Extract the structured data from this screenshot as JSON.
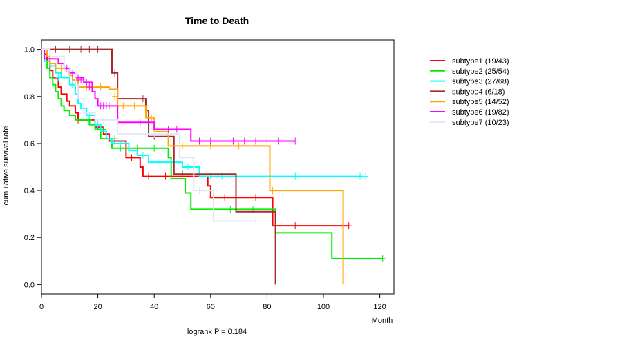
{
  "chart_data": {
    "type": "line",
    "title": "Time to Death",
    "xlabel": "Month",
    "ylabel": "cumulative survival rate",
    "annotation": "logrank P = 0.184",
    "xlim": [
      0,
      125
    ],
    "ylim": [
      -0.04,
      1.04
    ],
    "xticks": [
      0,
      20,
      40,
      60,
      80,
      100,
      120
    ],
    "yticks": [
      0.0,
      0.2,
      0.4,
      0.6,
      0.8,
      1.0
    ],
    "ytick_labels": [
      "0.0",
      "0.2",
      "0.4",
      "0.6",
      "0.8",
      "1.0"
    ],
    "legend_position": "right",
    "series": [
      {
        "name": "subtype1 (19/43)",
        "color": "#ff0000",
        "steps": [
          [
            0,
            1.0
          ],
          [
            1,
            0.98
          ],
          [
            2,
            0.95
          ],
          [
            3,
            0.91
          ],
          [
            4,
            0.88
          ],
          [
            6,
            0.84
          ],
          [
            7,
            0.81
          ],
          [
            9,
            0.78
          ],
          [
            10,
            0.76
          ],
          [
            12,
            0.73
          ],
          [
            13,
            0.7
          ],
          [
            19,
            0.67
          ],
          [
            22,
            0.64
          ],
          [
            24,
            0.61
          ],
          [
            30,
            0.54
          ],
          [
            35,
            0.5
          ],
          [
            36,
            0.46
          ],
          [
            59,
            0.42
          ],
          [
            60,
            0.37
          ],
          [
            82,
            0.25
          ],
          [
            109,
            0.25
          ]
        ],
        "censors": [
          [
            13,
            0.7
          ],
          [
            20,
            0.67
          ],
          [
            23,
            0.64
          ],
          [
            26,
            0.61
          ],
          [
            32,
            0.54
          ],
          [
            38,
            0.46
          ],
          [
            44,
            0.46
          ],
          [
            54,
            0.46
          ],
          [
            65,
            0.37
          ],
          [
            76,
            0.37
          ],
          [
            90,
            0.25
          ],
          [
            109,
            0.25
          ]
        ]
      },
      {
        "name": "subtype2 (25/54)",
        "color": "#00ee00",
        "steps": [
          [
            0,
            1.0
          ],
          [
            1,
            0.95
          ],
          [
            2,
            0.92
          ],
          [
            3,
            0.88
          ],
          [
            4,
            0.85
          ],
          [
            5,
            0.82
          ],
          [
            6,
            0.79
          ],
          [
            7,
            0.76
          ],
          [
            8,
            0.74
          ],
          [
            10,
            0.72
          ],
          [
            12,
            0.7
          ],
          [
            17,
            0.68
          ],
          [
            19,
            0.66
          ],
          [
            21,
            0.62
          ],
          [
            25,
            0.58
          ],
          [
            45,
            0.54
          ],
          [
            46,
            0.45
          ],
          [
            51,
            0.39
          ],
          [
            53,
            0.32
          ],
          [
            83,
            0.22
          ],
          [
            103,
            0.11
          ],
          [
            121,
            0.11
          ]
        ],
        "censors": [
          [
            17,
            0.7
          ],
          [
            19,
            0.68
          ],
          [
            22,
            0.66
          ],
          [
            26,
            0.62
          ],
          [
            28,
            0.58
          ],
          [
            30,
            0.58
          ],
          [
            34,
            0.58
          ],
          [
            40,
            0.58
          ],
          [
            67,
            0.32
          ],
          [
            75,
            0.32
          ],
          [
            80,
            0.32
          ],
          [
            121,
            0.11
          ]
        ]
      },
      {
        "name": "subtype3 (27/68)",
        "color": "#00ffff",
        "steps": [
          [
            0,
            1.0
          ],
          [
            1,
            0.95
          ],
          [
            3,
            0.93
          ],
          [
            5,
            0.9
          ],
          [
            7,
            0.88
          ],
          [
            10,
            0.85
          ],
          [
            12,
            0.81
          ],
          [
            13,
            0.77
          ],
          [
            14,
            0.75
          ],
          [
            16,
            0.72
          ],
          [
            19,
            0.68
          ],
          [
            21,
            0.65
          ],
          [
            23,
            0.62
          ],
          [
            25,
            0.6
          ],
          [
            31,
            0.57
          ],
          [
            34,
            0.55
          ],
          [
            38,
            0.52
          ],
          [
            50,
            0.5
          ],
          [
            56,
            0.46
          ],
          [
            114,
            0.46
          ]
        ],
        "censors": [
          [
            6,
            0.88
          ],
          [
            8,
            0.88
          ],
          [
            11,
            0.85
          ],
          [
            15,
            0.75
          ],
          [
            17,
            0.72
          ],
          [
            20,
            0.68
          ],
          [
            28,
            0.6
          ],
          [
            36,
            0.55
          ],
          [
            42,
            0.52
          ],
          [
            46,
            0.52
          ],
          [
            52,
            0.5
          ],
          [
            60,
            0.46
          ],
          [
            64,
            0.46
          ],
          [
            80,
            0.46
          ],
          [
            90,
            0.46
          ],
          [
            113,
            0.46
          ],
          [
            115,
            0.46
          ]
        ]
      },
      {
        "name": "subtype4 (6/18)",
        "color": "#a52a2a",
        "steps": [
          [
            0,
            1.0
          ],
          [
            25,
            0.9
          ],
          [
            27,
            0.79
          ],
          [
            37,
            0.74
          ],
          [
            38,
            0.63
          ],
          [
            47,
            0.47
          ],
          [
            69,
            0.31
          ],
          [
            83,
            0.0
          ]
        ],
        "censors": [
          [
            5,
            1.0
          ],
          [
            10,
            1.0
          ],
          [
            14,
            1.0
          ],
          [
            17,
            1.0
          ],
          [
            20,
            1.0
          ],
          [
            26,
            0.9
          ],
          [
            36,
            0.79
          ],
          [
            40,
            0.63
          ],
          [
            50,
            0.47
          ]
        ]
      },
      {
        "name": "subtype5 (14/52)",
        "color": "#ffa500",
        "steps": [
          [
            0,
            1.0
          ],
          [
            2,
            0.97
          ],
          [
            3,
            0.94
          ],
          [
            5,
            0.92
          ],
          [
            10,
            0.89
          ],
          [
            11,
            0.87
          ],
          [
            13,
            0.84
          ],
          [
            20,
            0.84
          ],
          [
            24,
            0.83
          ],
          [
            27,
            0.76
          ],
          [
            37,
            0.71
          ],
          [
            40,
            0.65
          ],
          [
            45,
            0.59
          ],
          [
            81,
            0.4
          ],
          [
            107,
            0.0
          ]
        ],
        "censors": [
          [
            7,
            0.92
          ],
          [
            12,
            0.87
          ],
          [
            16,
            0.84
          ],
          [
            21,
            0.84
          ],
          [
            26,
            0.8
          ],
          [
            29,
            0.76
          ],
          [
            31,
            0.76
          ],
          [
            33,
            0.76
          ],
          [
            39,
            0.71
          ],
          [
            50,
            0.59
          ],
          [
            60,
            0.59
          ],
          [
            70,
            0.59
          ],
          [
            82,
            0.4
          ]
        ]
      },
      {
        "name": "subtype6 (19/82)",
        "color": "#ff00ff",
        "steps": [
          [
            0,
            1.0
          ],
          [
            1,
            0.96
          ],
          [
            6,
            0.94
          ],
          [
            8,
            0.92
          ],
          [
            10,
            0.9
          ],
          [
            12,
            0.88
          ],
          [
            15,
            0.86
          ],
          [
            18,
            0.82
          ],
          [
            19,
            0.79
          ],
          [
            20,
            0.76
          ],
          [
            27,
            0.69
          ],
          [
            40,
            0.66
          ],
          [
            53,
            0.61
          ],
          [
            90,
            0.61
          ]
        ],
        "censors": [
          [
            9,
            0.92
          ],
          [
            11,
            0.9
          ],
          [
            13,
            0.88
          ],
          [
            14,
            0.87
          ],
          [
            16,
            0.86
          ],
          [
            17,
            0.84
          ],
          [
            21,
            0.76
          ],
          [
            22,
            0.76
          ],
          [
            23,
            0.76
          ],
          [
            24,
            0.76
          ],
          [
            35,
            0.69
          ],
          [
            45,
            0.66
          ],
          [
            48,
            0.66
          ],
          [
            56,
            0.61
          ],
          [
            60,
            0.61
          ],
          [
            68,
            0.61
          ],
          [
            72,
            0.61
          ],
          [
            76,
            0.61
          ],
          [
            80,
            0.61
          ],
          [
            84,
            0.61
          ],
          [
            90,
            0.61
          ]
        ]
      },
      {
        "name": "subtype7 (10/23)",
        "color": "#e0e6f8",
        "steps": [
          [
            0,
            1.0
          ],
          [
            3,
            0.97
          ],
          [
            8,
            0.91
          ],
          [
            12,
            0.85
          ],
          [
            13,
            0.79
          ],
          [
            15,
            0.73
          ],
          [
            19,
            0.7
          ],
          [
            27,
            0.64
          ],
          [
            49,
            0.54
          ],
          [
            54,
            0.4
          ],
          [
            61,
            0.27
          ],
          [
            76,
            0.27
          ]
        ],
        "censors": [
          [
            10,
            0.91
          ],
          [
            22,
            0.7
          ],
          [
            30,
            0.64
          ],
          [
            40,
            0.64
          ],
          [
            56,
            0.4
          ],
          [
            76,
            0.27
          ]
        ]
      }
    ]
  }
}
